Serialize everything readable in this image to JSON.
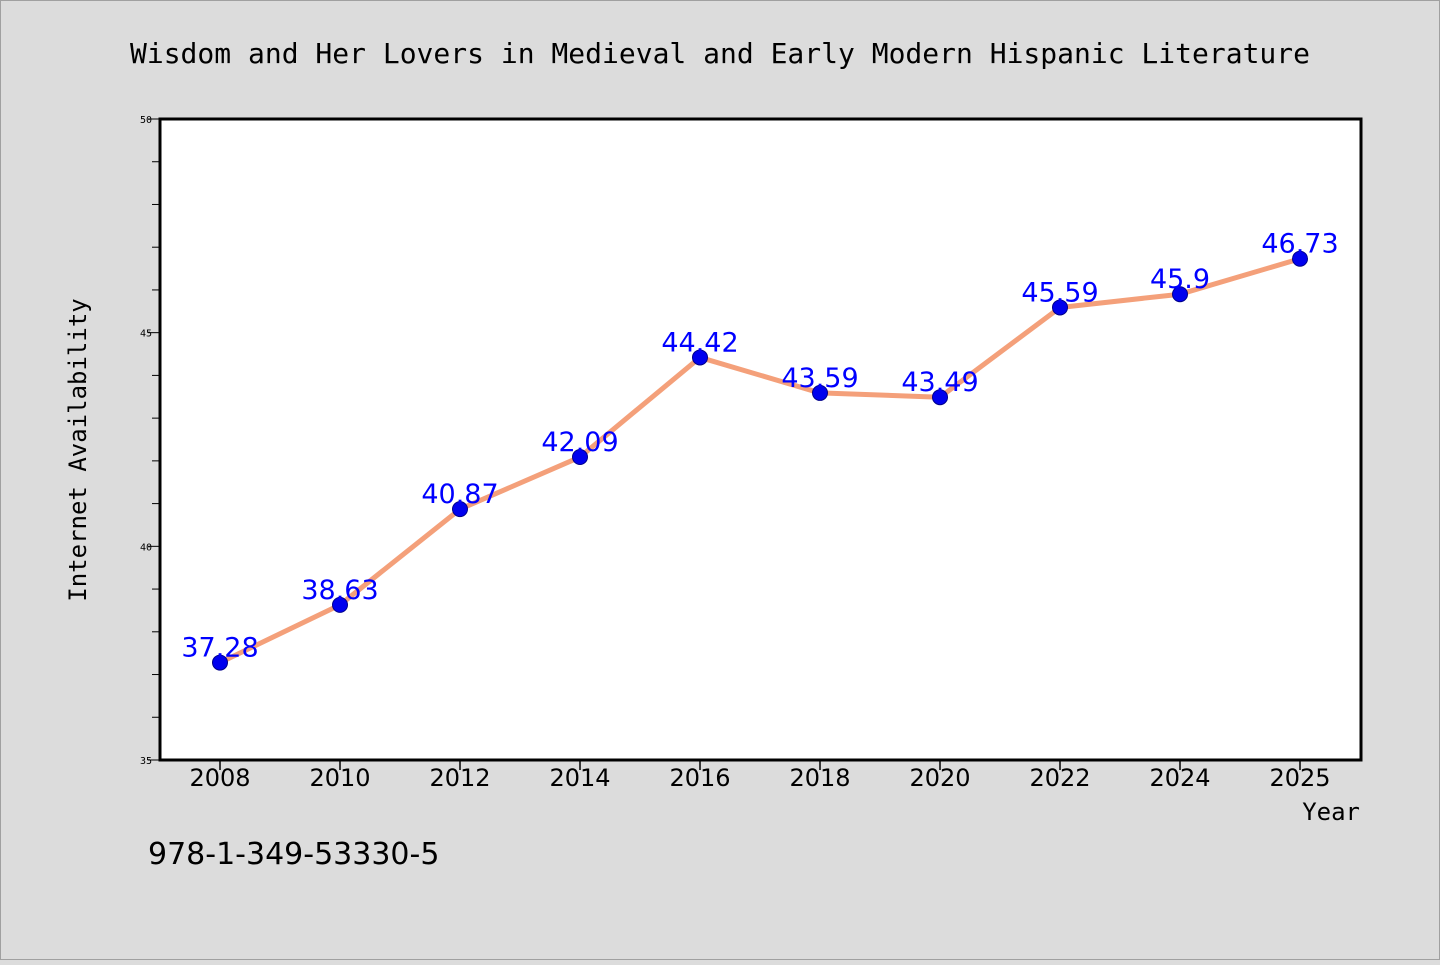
{
  "figure": {
    "background": "#dcdcdc",
    "footer_text": "978-1-349-53330-5"
  },
  "chart_data": {
    "type": "line",
    "title": "Wisdom and Her Lovers in Medieval and Early Modern Hispanic Literature",
    "xlabel": "Year",
    "ylabel": "Internet Availability",
    "x": [
      "2008",
      "2010",
      "2012",
      "2014",
      "2016",
      "2018",
      "2020",
      "2022",
      "2024",
      "2025"
    ],
    "series": [
      {
        "values": [
          37.28,
          38.63,
          40.87,
          42.09,
          44.42,
          43.59,
          43.49,
          45.59,
          45.9,
          46.73
        ],
        "labels": [
          "37.28",
          "38.63",
          "40.87",
          "42.09",
          "44.42",
          "43.59",
          "43.49",
          "45.59",
          "45.9",
          "46.73"
        ],
        "line_color": "#f4a07a",
        "marker_color": "#0000ee",
        "label_color": "#0000ff"
      }
    ],
    "ylim": [
      35,
      50
    ],
    "y_major_ticks": [
      "35",
      "40",
      "45",
      "50"
    ],
    "y_minor_step": 1,
    "grid": false,
    "legend": "none"
  }
}
